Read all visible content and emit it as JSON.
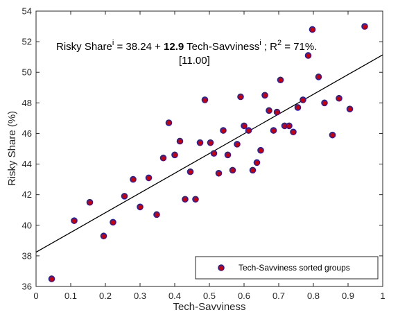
{
  "chart_data": {
    "type": "scatter",
    "xlabel": "Tech-Savviness",
    "ylabel": "Risky Share (%)",
    "xlim": [
      0,
      1
    ],
    "ylim": [
      36,
      54
    ],
    "xticks": [
      "0",
      "0.1",
      "0.2",
      "0.3",
      "0.4",
      "0.5",
      "0.6",
      "0.7",
      "0.8",
      "0.9",
      "1"
    ],
    "yticks": [
      "36",
      "38",
      "40",
      "42",
      "44",
      "46",
      "48",
      "50",
      "52",
      "54"
    ],
    "regression": {
      "intercept": 38.24,
      "slope": 12.9
    },
    "annotation": {
      "lhs": "Risky Share",
      "lhs_sup": "i",
      "eq_mid": " = 38.24 + ",
      "coef": "12.9",
      "rhs": " Tech-Savviness",
      "rhs_sup": "i",
      "r2_prefix": " ; R",
      "r2_sup": "2",
      "r2_suffix": " = 71%.",
      "se": "[11.00]"
    },
    "legend": {
      "label": "Tech-Savviness sorted groups",
      "position": "bottom-right"
    },
    "marker": {
      "face": "#cc0000",
      "edge": "#1f1fb4"
    },
    "line_color": "#000000",
    "points": [
      [
        0.045,
        36.5
      ],
      [
        0.11,
        40.3
      ],
      [
        0.155,
        41.5
      ],
      [
        0.195,
        39.3
      ],
      [
        0.222,
        40.2
      ],
      [
        0.255,
        41.9
      ],
      [
        0.28,
        43.0
      ],
      [
        0.3,
        41.2
      ],
      [
        0.325,
        43.1
      ],
      [
        0.348,
        40.7
      ],
      [
        0.367,
        44.4
      ],
      [
        0.383,
        46.7
      ],
      [
        0.4,
        44.6
      ],
      [
        0.415,
        45.5
      ],
      [
        0.43,
        41.7
      ],
      [
        0.445,
        43.5
      ],
      [
        0.46,
        41.7
      ],
      [
        0.473,
        45.4
      ],
      [
        0.487,
        48.2
      ],
      [
        0.503,
        45.4
      ],
      [
        0.513,
        44.7
      ],
      [
        0.527,
        43.4
      ],
      [
        0.54,
        46.2
      ],
      [
        0.553,
        44.6
      ],
      [
        0.567,
        43.6
      ],
      [
        0.58,
        45.3
      ],
      [
        0.59,
        48.4
      ],
      [
        0.6,
        46.5
      ],
      [
        0.613,
        46.2
      ],
      [
        0.625,
        43.6
      ],
      [
        0.637,
        44.1
      ],
      [
        0.648,
        44.9
      ],
      [
        0.66,
        48.5
      ],
      [
        0.672,
        47.5
      ],
      [
        0.685,
        46.2
      ],
      [
        0.695,
        47.4
      ],
      [
        0.705,
        49.5
      ],
      [
        0.717,
        46.5
      ],
      [
        0.73,
        46.5
      ],
      [
        0.742,
        46.1
      ],
      [
        0.755,
        47.7
      ],
      [
        0.77,
        48.2
      ],
      [
        0.785,
        51.1
      ],
      [
        0.797,
        52.8
      ],
      [
        0.815,
        49.7
      ],
      [
        0.832,
        48.0
      ],
      [
        0.855,
        45.9
      ],
      [
        0.874,
        48.3
      ],
      [
        0.905,
        47.6
      ],
      [
        0.948,
        53.0
      ]
    ]
  }
}
